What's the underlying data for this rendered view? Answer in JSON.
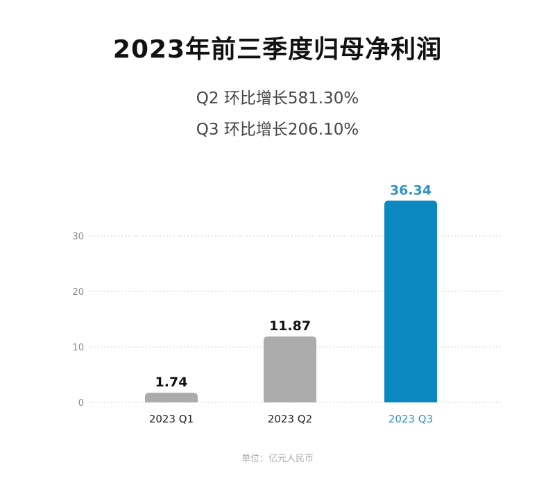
{
  "title": "2023年前三季度归母净利润",
  "subtitle_lines": [
    "Q2 环比增长581.30%",
    "Q3 环比增长206.10%"
  ],
  "unit_note": "单位：亿元人民币",
  "colors": {
    "bar_default": "#ababab",
    "bar_highlight": "#0a88bf",
    "label_default": "#111111",
    "label_highlight": "#2f93c6",
    "grid": "#cfcfcf",
    "tick": "#8a8a8a"
  },
  "chart_data": {
    "type": "bar",
    "categories": [
      "2023 Q1",
      "2023 Q2",
      "2023 Q3"
    ],
    "values": [
      1.74,
      11.87,
      36.34
    ],
    "value_labels": [
      "1.74",
      "11.87",
      "36.34"
    ],
    "highlight_index": 2,
    "yticks": [
      0,
      10,
      20,
      30
    ],
    "ylim": [
      0,
      36.34
    ],
    "grid": true,
    "grid_style": "dotted",
    "legend": false,
    "title": "2023年前三季度归母净利润"
  }
}
